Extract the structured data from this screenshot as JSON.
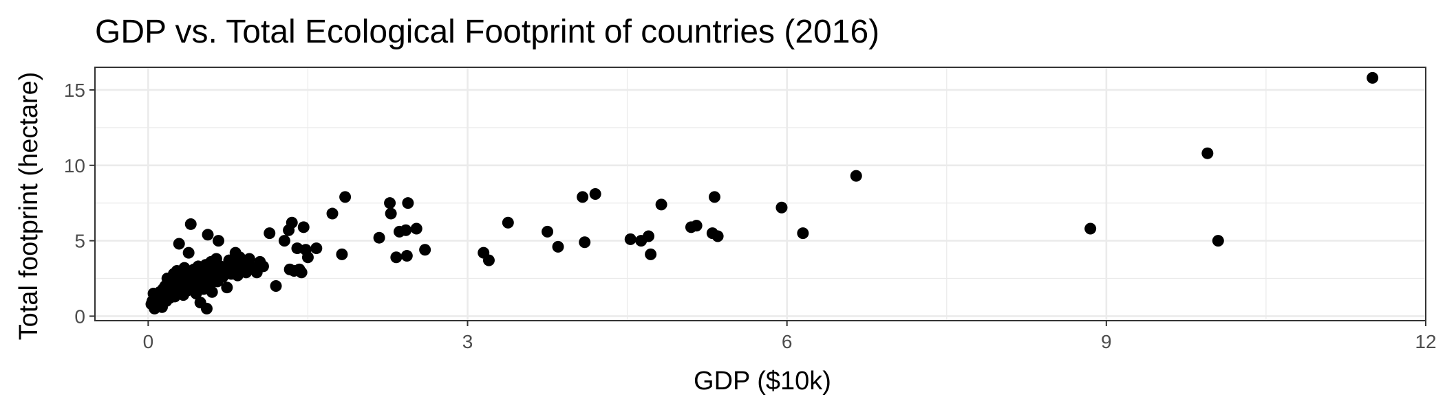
{
  "chart_data": {
    "type": "scatter",
    "title": "GDP vs. Total Ecological Footprint of countries (2016)",
    "xlabel": "GDP ($10k)",
    "ylabel": "Total footprint (hectare)",
    "xlim": [
      -0.5,
      12.0
    ],
    "ylim": [
      -0.3,
      16.5
    ],
    "x_ticks": [
      0,
      3,
      6,
      9,
      12
    ],
    "x_tick_labels": [
      "0",
      "3",
      "6",
      "9",
      "12"
    ],
    "y_ticks": [
      0,
      5,
      10,
      15
    ],
    "y_tick_labels": [
      "0",
      "5",
      "10",
      "15"
    ],
    "grid": true,
    "legend": "none",
    "point_color": "#000000",
    "points": [
      [
        0.03,
        0.8
      ],
      [
        0.04,
        1.0
      ],
      [
        0.05,
        1.5
      ],
      [
        0.06,
        0.5
      ],
      [
        0.07,
        1.2
      ],
      [
        0.08,
        0.7
      ],
      [
        0.09,
        1.3
      ],
      [
        0.1,
        0.9
      ],
      [
        0.11,
        1.6
      ],
      [
        0.12,
        1.1
      ],
      [
        0.13,
        0.6
      ],
      [
        0.14,
        1.8
      ],
      [
        0.15,
        1.4
      ],
      [
        0.16,
        2.0
      ],
      [
        0.17,
        1.0
      ],
      [
        0.18,
        2.5
      ],
      [
        0.19,
        1.7
      ],
      [
        0.2,
        1.2
      ],
      [
        0.21,
        2.2
      ],
      [
        0.22,
        1.5
      ],
      [
        0.23,
        1.9
      ],
      [
        0.24,
        2.8
      ],
      [
        0.25,
        1.3
      ],
      [
        0.26,
        2.4
      ],
      [
        0.27,
        3.0
      ],
      [
        0.28,
        1.6
      ],
      [
        0.29,
        4.8
      ],
      [
        0.3,
        2.1
      ],
      [
        0.31,
        1.8
      ],
      [
        0.32,
        2.6
      ],
      [
        0.33,
        1.4
      ],
      [
        0.34,
        3.2
      ],
      [
        0.35,
        2.0
      ],
      [
        0.36,
        2.9
      ],
      [
        0.37,
        1.7
      ],
      [
        0.38,
        4.2
      ],
      [
        0.39,
        2.3
      ],
      [
        0.4,
        6.1
      ],
      [
        0.41,
        2.7
      ],
      [
        0.42,
        1.9
      ],
      [
        0.43,
        3.1
      ],
      [
        0.44,
        2.4
      ],
      [
        0.45,
        1.5
      ],
      [
        0.46,
        2.8
      ],
      [
        0.47,
        3.3
      ],
      [
        0.48,
        2.2
      ],
      [
        0.49,
        0.9
      ],
      [
        0.5,
        2.6
      ],
      [
        0.51,
        3.0
      ],
      [
        0.52,
        1.8
      ],
      [
        0.53,
        2.4
      ],
      [
        0.54,
        3.4
      ],
      [
        0.55,
        0.5
      ],
      [
        0.56,
        5.4
      ],
      [
        0.57,
        2.9
      ],
      [
        0.58,
        2.1
      ],
      [
        0.59,
        3.6
      ],
      [
        0.6,
        1.6
      ],
      [
        0.61,
        2.7
      ],
      [
        0.62,
        3.2
      ],
      [
        0.63,
        2.5
      ],
      [
        0.64,
        3.8
      ],
      [
        0.65,
        2.3
      ],
      [
        0.66,
        5.0
      ],
      [
        0.67,
        2.9
      ],
      [
        0.68,
        3.3
      ],
      [
        0.7,
        2.6
      ],
      [
        0.72,
        3.1
      ],
      [
        0.74,
        1.9
      ],
      [
        0.76,
        3.7
      ],
      [
        0.78,
        2.8
      ],
      [
        0.8,
        3.4
      ],
      [
        0.82,
        4.2
      ],
      [
        0.84,
        2.7
      ],
      [
        0.86,
        3.9
      ],
      [
        0.88,
        3.0
      ],
      [
        0.9,
        3.5
      ],
      [
        0.92,
        2.9
      ],
      [
        0.95,
        3.8
      ],
      [
        0.98,
        3.2
      ],
      [
        1.02,
        2.9
      ],
      [
        1.05,
        3.6
      ],
      [
        1.08,
        3.3
      ],
      [
        1.14,
        5.5
      ],
      [
        1.2,
        2.0
      ],
      [
        1.28,
        5.0
      ],
      [
        1.32,
        5.7
      ],
      [
        1.35,
        6.2
      ],
      [
        1.33,
        3.1
      ],
      [
        1.37,
        3.0
      ],
      [
        1.4,
        4.5
      ],
      [
        1.42,
        3.1
      ],
      [
        1.44,
        2.9
      ],
      [
        1.46,
        5.9
      ],
      [
        1.48,
        4.4
      ],
      [
        1.5,
        3.9
      ],
      [
        1.58,
        4.5
      ],
      [
        1.73,
        6.8
      ],
      [
        1.82,
        4.1
      ],
      [
        1.85,
        7.9
      ],
      [
        2.17,
        5.2
      ],
      [
        2.27,
        7.5
      ],
      [
        2.28,
        6.8
      ],
      [
        2.33,
        3.9
      ],
      [
        2.36,
        5.6
      ],
      [
        2.42,
        5.7
      ],
      [
        2.43,
        4.0
      ],
      [
        2.44,
        7.5
      ],
      [
        2.52,
        5.8
      ],
      [
        2.6,
        4.4
      ],
      [
        3.15,
        4.2
      ],
      [
        3.2,
        3.7
      ],
      [
        3.38,
        6.2
      ],
      [
        3.75,
        5.6
      ],
      [
        3.85,
        4.6
      ],
      [
        4.08,
        7.9
      ],
      [
        4.1,
        4.9
      ],
      [
        4.2,
        8.1
      ],
      [
        4.53,
        5.1
      ],
      [
        4.63,
        5.0
      ],
      [
        4.7,
        5.3
      ],
      [
        4.72,
        4.1
      ],
      [
        4.82,
        7.4
      ],
      [
        5.1,
        5.9
      ],
      [
        5.15,
        6.0
      ],
      [
        5.3,
        5.5
      ],
      [
        5.35,
        5.3
      ],
      [
        5.32,
        7.9
      ],
      [
        5.95,
        7.2
      ],
      [
        6.15,
        5.5
      ],
      [
        6.65,
        9.3
      ],
      [
        8.85,
        5.8
      ],
      [
        9.95,
        10.8
      ],
      [
        10.05,
        5.0
      ],
      [
        11.5,
        15.8
      ]
    ]
  }
}
